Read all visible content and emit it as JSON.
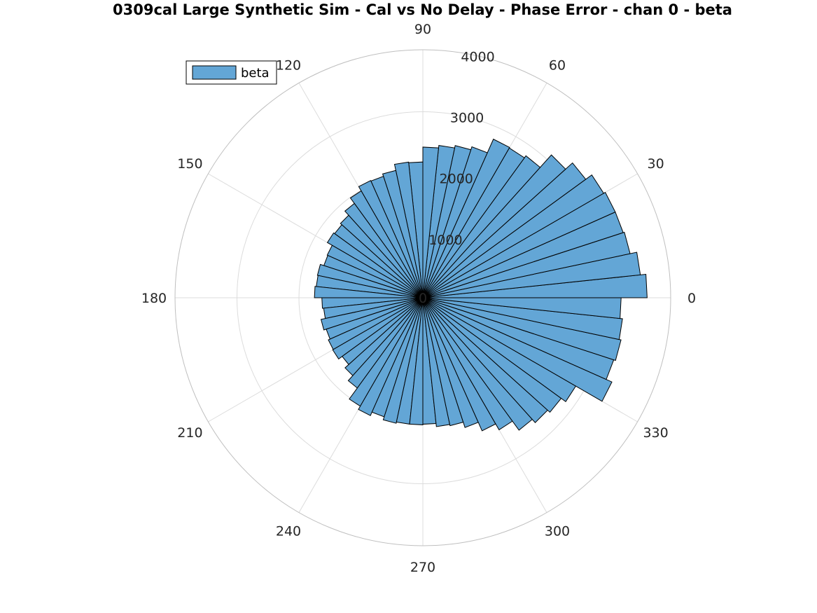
{
  "title": "0309cal Large Synthetic Sim - Cal vs No Delay - Phase Error - chan 0 - beta",
  "colors": {
    "bar_fill": "#63a6d6",
    "bar_edge": "#000000",
    "grid": "#dcdcdc",
    "axis": "#bfbfbf",
    "text": "#262626"
  },
  "chart_data": {
    "type": "polar-histogram",
    "title": "0309cal Large Synthetic Sim - Cal vs No Delay - Phase Error - chan 0 - beta",
    "theta_unit": "degrees",
    "theta_ticks": [
      0,
      30,
      60,
      90,
      120,
      150,
      180,
      210,
      240,
      270,
      300,
      330
    ],
    "theta_tick_labels": [
      "0",
      "30",
      "60",
      "90",
      "120",
      "150",
      "180",
      "210",
      "240",
      "270",
      "300",
      "330"
    ],
    "r_ticks": [
      0,
      1000,
      2000,
      3000,
      4000
    ],
    "r_tick_labels": [
      "0",
      "1000",
      "2000",
      "3000",
      "4000"
    ],
    "rlim": [
      0,
      4000
    ],
    "bin_width_deg": 6,
    "grid": true,
    "legend": {
      "entries": [
        "beta"
      ],
      "placement": "top-left"
    },
    "series": [
      {
        "name": "beta",
        "bin_start_deg": [
          0,
          6,
          12,
          18,
          24,
          30,
          36,
          42,
          48,
          54,
          60,
          66,
          72,
          78,
          84,
          90,
          96,
          102,
          108,
          114,
          120,
          126,
          132,
          138,
          144,
          150,
          156,
          162,
          168,
          174,
          180,
          186,
          192,
          198,
          204,
          210,
          216,
          222,
          228,
          234,
          240,
          246,
          252,
          258,
          264,
          270,
          276,
          282,
          288,
          294,
          300,
          306,
          312,
          318,
          324,
          330,
          336,
          342,
          348,
          354
        ],
        "values": [
          3620,
          3530,
          3420,
          3400,
          3400,
          3370,
          3250,
          3100,
          2830,
          2790,
          2800,
          2560,
          2510,
          2470,
          2430,
          2190,
          2200,
          2100,
          2060,
          2070,
          1990,
          1880,
          1790,
          1760,
          1780,
          1690,
          1680,
          1740,
          1730,
          1750,
          1630,
          1610,
          1680,
          1640,
          1670,
          1680,
          1610,
          1690,
          1800,
          2020,
          2080,
          2020,
          2070,
          2050,
          2050,
          2040,
          2090,
          2110,
          2200,
          2350,
          2460,
          2640,
          2710,
          2760,
          2850,
          3340,
          3240,
          3270,
          3240,
          3200
        ]
      }
    ]
  }
}
